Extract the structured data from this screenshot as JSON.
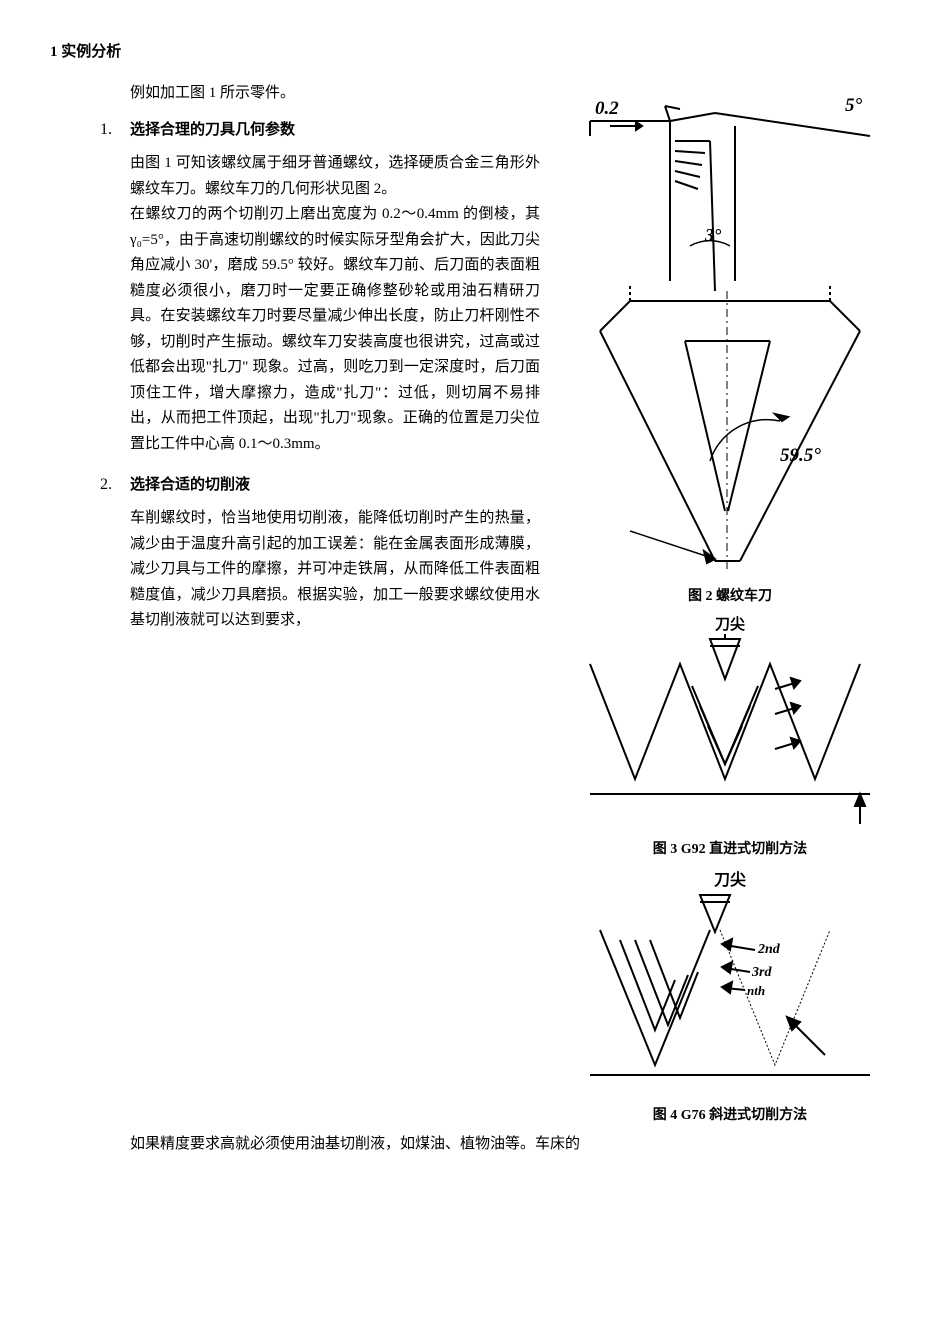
{
  "header": {
    "section_number": "1",
    "section_title": "实例分析"
  },
  "intro": "例如加工图 1 所示零件。",
  "subsections": [
    {
      "number": "1.",
      "title": "选择合理的刀具几何参数",
      "body": "由图 1 可知该螺纹属于细牙普通螺纹，选择硬质合金三角形外螺纹车刀。螺纹车刀的几何形状见图 2。\n在螺纹刀的两个切削刃上磨出宽度为 0.2～0.4mm 的倒棱，其γ₀=5°，由于高速切削螺纹的时候实际牙型角会扩大，因此刀尖角应减小 30'，磨成 59.5° 较好。螺纹车刀前、后刀面的表面粗糙度必须很小，磨刀时一定要正确修整砂轮或用油石精研刀具。在安装螺纹车刀时要尽量减少伸出长度，防止刀杆刚性不够，切削时产生振动。螺纹车刀安装高度也很讲究，过高或过低都会出现\"扎刀\" 现象。过高，则吃刀到一定深度时，后刀面顶住工件，增大摩擦力，造成\"扎刀\"：过低，则切屑不易排出，从而把工件顶起，出现\"扎刀\"现象。正确的位置是刀尖位置比工件中心高 0.1～0.3mm。"
    },
    {
      "number": "2.",
      "title": "选择合适的切削液",
      "body": "车削螺纹时，恰当地使用切削液，能降低切削时产生的热量，减少由于温度升高引起的加工误差：能在金属表面形成薄膜，减少刀具与工件的摩擦，并可冲走铁屑，从而降低工件表面粗糙度值，减少刀具磨损。根据实验，加工一般要求螺纹使用水基切削液就可以达到要求，"
    }
  ],
  "bottom_continuation": "如果精度要求高就必须使用油基切削液，如煤油、植物油等。车床的",
  "figures": [
    {
      "caption": "图 2 螺纹车刀",
      "type": "diagram",
      "angle_top": "5°",
      "angle_left": "0.2",
      "angle_mid": "3°",
      "angle_bottom": "59.5°",
      "stroke_color": "#000000",
      "stroke_width": 2
    },
    {
      "caption": "图 3 G92 直进式切削方法",
      "label": "刀尖",
      "type": "diagram",
      "stroke_color": "#000000",
      "stroke_width": 2
    },
    {
      "caption": "图 4 G76 斜进式切削方法",
      "label": "刀尖",
      "labels": [
        "2nd",
        "3rd",
        "nth"
      ],
      "type": "diagram",
      "stroke_color": "#000000",
      "stroke_width": 2
    }
  ],
  "styles": {
    "background_color": "#ffffff",
    "text_color": "#000000",
    "body_fontsize": 15,
    "caption_fontsize": 14,
    "line_height": 1.7
  }
}
